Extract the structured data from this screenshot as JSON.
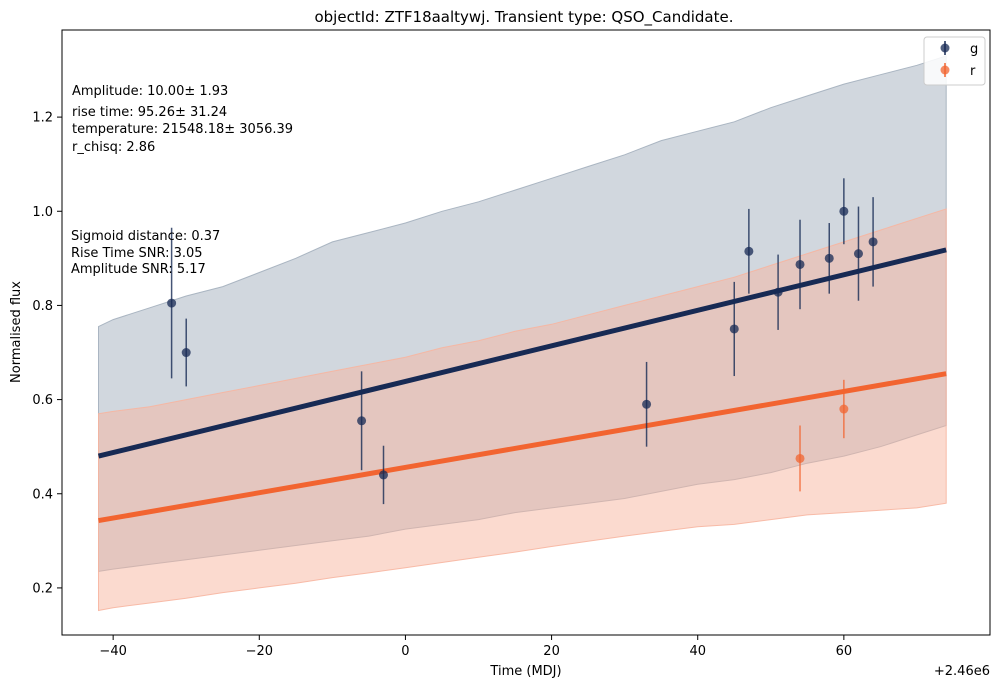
{
  "chart_data": {
    "type": "scatter",
    "title": "objectId: ZTF18aaltywj. Transient type: QSO_Candidate.",
    "xlabel": "Time (MDJ)",
    "ylabel": "Normalised flux",
    "x_offset_label": "+2.46e6",
    "xlim": [
      -47,
      80
    ],
    "ylim": [
      0.1,
      1.385
    ],
    "x_ticks": [
      -40,
      -20,
      0,
      20,
      40,
      60
    ],
    "x_tick_labels": [
      "−40",
      "−20",
      "0",
      "20",
      "40",
      "60"
    ],
    "y_ticks": [
      0.2,
      0.4,
      0.6,
      0.8,
      1.0,
      1.2
    ],
    "y_tick_labels": [
      "0.2",
      "0.4",
      "0.6",
      "0.8",
      "1.0",
      "1.2"
    ],
    "legend": {
      "placement": "top-right",
      "entries": [
        "g",
        "r"
      ]
    },
    "annotations": {
      "fit_params": [
        "Amplitude: 10.00± 1.93",
        "rise time: 95.26± 31.24",
        "temperature: 21548.18± 3056.39",
        "r_chisq: 2.86"
      ],
      "features": [
        "Sigmoid distance: 0.37",
        "Rise Time SNR: 3.05",
        "Amplitude SNR: 5.17"
      ]
    },
    "series": [
      {
        "name": "g",
        "color": "#172a54",
        "band_color": "#a3afbd",
        "points": [
          {
            "x": -32,
            "y": 0.805,
            "err": 0.16
          },
          {
            "x": -30,
            "y": 0.7,
            "err": 0.072
          },
          {
            "x": -6,
            "y": 0.555,
            "err": 0.105
          },
          {
            "x": -3,
            "y": 0.44,
            "err": 0.062
          },
          {
            "x": 33,
            "y": 0.59,
            "err": 0.09
          },
          {
            "x": 45,
            "y": 0.75,
            "err": 0.1
          },
          {
            "x": 47,
            "y": 0.915,
            "err": 0.09
          },
          {
            "x": 51,
            "y": 0.828,
            "err": 0.08
          },
          {
            "x": 54,
            "y": 0.887,
            "err": 0.095
          },
          {
            "x": 58,
            "y": 0.9,
            "err": 0.075
          },
          {
            "x": 60,
            "y": 1.0,
            "err": 0.07
          },
          {
            "x": 62,
            "y": 0.91,
            "err": 0.1
          },
          {
            "x": 64,
            "y": 0.935,
            "err": 0.095
          }
        ],
        "fit": {
          "x": [
            -42,
            74
          ],
          "y": [
            0.48,
            0.918
          ]
        },
        "band": {
          "x": [
            -42,
            -40,
            -35,
            -30,
            -25,
            -20,
            -15,
            -10,
            -5,
            0,
            5,
            10,
            15,
            20,
            25,
            30,
            35,
            40,
            45,
            50,
            55,
            60,
            65,
            70,
            74
          ],
          "upper": [
            0.755,
            0.77,
            0.795,
            0.82,
            0.84,
            0.87,
            0.9,
            0.935,
            0.955,
            0.975,
            1.0,
            1.02,
            1.045,
            1.07,
            1.095,
            1.12,
            1.15,
            1.17,
            1.19,
            1.22,
            1.245,
            1.27,
            1.29,
            1.31,
            1.33
          ],
          "lower": [
            0.235,
            0.24,
            0.25,
            0.26,
            0.27,
            0.28,
            0.29,
            0.3,
            0.31,
            0.325,
            0.335,
            0.345,
            0.36,
            0.37,
            0.38,
            0.39,
            0.405,
            0.42,
            0.43,
            0.445,
            0.465,
            0.48,
            0.5,
            0.525,
            0.545
          ]
        }
      },
      {
        "name": "r",
        "color": "#f26430",
        "band_color": "#f7b5a0",
        "points": [
          {
            "x": 54,
            "y": 0.475,
            "err": 0.07
          },
          {
            "x": 60,
            "y": 0.58,
            "err": 0.062
          }
        ],
        "fit": {
          "x": [
            -42,
            74
          ],
          "y": [
            0.343,
            0.655
          ]
        },
        "band": {
          "x": [
            -42,
            -40,
            -35,
            -30,
            -25,
            -20,
            -15,
            -10,
            -5,
            0,
            5,
            10,
            15,
            20,
            25,
            30,
            35,
            40,
            45,
            50,
            55,
            60,
            65,
            70,
            74
          ],
          "upper": [
            0.57,
            0.575,
            0.585,
            0.6,
            0.615,
            0.63,
            0.645,
            0.66,
            0.675,
            0.69,
            0.71,
            0.725,
            0.745,
            0.76,
            0.78,
            0.8,
            0.82,
            0.84,
            0.86,
            0.885,
            0.91,
            0.935,
            0.96,
            0.985,
            1.005
          ],
          "lower": [
            0.152,
            0.158,
            0.168,
            0.178,
            0.19,
            0.2,
            0.21,
            0.222,
            0.232,
            0.243,
            0.254,
            0.265,
            0.276,
            0.288,
            0.299,
            0.31,
            0.32,
            0.33,
            0.335,
            0.345,
            0.355,
            0.36,
            0.365,
            0.37,
            0.38
          ]
        }
      }
    ]
  }
}
